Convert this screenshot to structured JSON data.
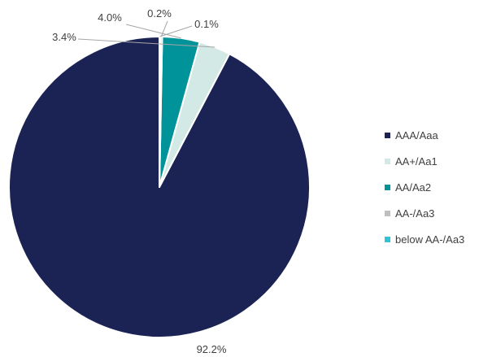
{
  "chart_data": {
    "type": "pie",
    "title": "",
    "categories": [
      "AAA/Aaa",
      "AA+/Aa1",
      "AA/Aa2",
      "AA-/Aa3",
      "below AA-/Aa3"
    ],
    "values": [
      92.2,
      3.4,
      4.0,
      0.2,
      0.1
    ],
    "value_labels": [
      "92.2%",
      "3.4%",
      "4.0%",
      "0.2%",
      "0.1%"
    ],
    "colors": [
      "#1b2355",
      "#d3e9e6",
      "#00939a",
      "#bfbfbf",
      "#2ec4d4"
    ],
    "start_angle_deg": 0,
    "direction": "counterclockwise",
    "legend": {
      "position": "right",
      "entries": [
        "AAA/Aaa",
        "AA+/Aa1",
        "AA/Aa2",
        "AA-/Aa3",
        "below AA-/Aa3"
      ]
    }
  }
}
